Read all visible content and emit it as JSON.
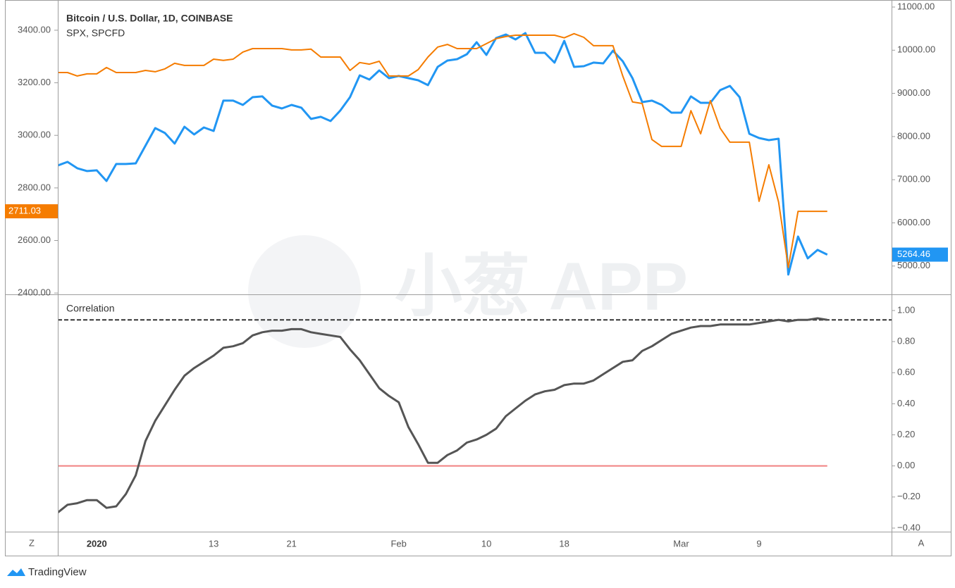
{
  "watermark": "小葱 APP",
  "brand": "TradingView",
  "buttons": [
    "Z",
    "A"
  ],
  "chart_data": [
    {
      "type": "line",
      "categories": [
        null,
        null,
        null,
        null,
        "2020",
        null,
        null,
        null,
        null,
        null,
        null,
        null,
        null,
        null,
        null,
        null,
        "13",
        null,
        null,
        null,
        null,
        null,
        null,
        null,
        "21",
        null,
        null,
        null,
        null,
        null,
        null,
        null,
        null,
        null,
        null,
        "Feb",
        null,
        null,
        null,
        null,
        null,
        null,
        null,
        null,
        "10",
        null,
        null,
        null,
        null,
        null,
        null,
        null,
        "18",
        null,
        null,
        null,
        null,
        null,
        null,
        null,
        null,
        null,
        null,
        null,
        "Mar",
        null,
        null,
        null,
        null,
        null,
        null,
        null,
        "9",
        null,
        null,
        null,
        null,
        null,
        null,
        null
      ],
      "series": [
        {
          "name": "Bitcoin / U.S. Dollar, 1D, COINBASE",
          "color": "#2196f3",
          "axis": "y2",
          "values": [
            7330,
            7412,
            7265,
            7200,
            7216,
            6971,
            7363,
            7363,
            7379,
            7787,
            8195,
            8081,
            7836,
            8227,
            8048,
            8211,
            8129,
            8831,
            8831,
            8733,
            8912,
            8929,
            8717,
            8651,
            8733,
            8668,
            8407,
            8456,
            8358,
            8602,
            8912,
            9418,
            9320,
            9532,
            9353,
            9402,
            9353,
            9304,
            9190,
            9614,
            9760,
            9793,
            9907,
            10184,
            9891,
            10282,
            10364,
            10250,
            10397,
            9940,
            9940,
            9712,
            10217,
            9614,
            9630,
            9712,
            9695,
            9989,
            9744,
            9353,
            8798,
            8831,
            8733,
            8553,
            8553,
            8929,
            8782,
            8782,
            9075,
            9173,
            8912,
            8064,
            7966,
            7917,
            7950,
            4802,
            5683,
            5177,
            5373,
            5264.46
          ]
        },
        {
          "name": "SPX, SPCFD",
          "color": "#f57c00",
          "values": [
            3239,
            3239,
            3226,
            3234,
            3234,
            3258,
            3239,
            3239,
            3239,
            3247,
            3242,
            3253,
            3274,
            3266,
            3266,
            3266,
            3290,
            3285,
            3290,
            3317,
            3330,
            3330,
            3330,
            3330,
            3325,
            3325,
            3328,
            3298,
            3298,
            3298,
            3247,
            3277,
            3271,
            3282,
            3226,
            3226,
            3226,
            3250,
            3298,
            3336,
            3346,
            3330,
            3330,
            3330,
            3349,
            3368,
            3376,
            3381,
            3381,
            3381,
            3381,
            3381,
            3371,
            3387,
            3373,
            3341,
            3341,
            3341,
            3226,
            3127,
            3121,
            2984,
            2958,
            2958,
            2958,
            3094,
            3006,
            3132,
            3027,
            2974,
            2974,
            2974,
            2749,
            2888,
            2746,
            2497,
            2711.03,
            2711.03,
            2711.03,
            2711.03
          ]
        }
      ],
      "ylim": [
        2395,
        3515
      ],
      "yticks": [
        {
          "value": 2400,
          "label": "2400.00"
        },
        {
          "value": 2600,
          "label": "2600.00"
        },
        {
          "value": 2800,
          "label": "2800.00"
        },
        {
          "value": 3000,
          "label": "3000.00"
        },
        {
          "value": 3200,
          "label": "3200.00"
        },
        {
          "value": 3400,
          "label": "3400.00"
        }
      ],
      "y2lim": [
        4344,
        11163
      ],
      "y2ticks": [
        {
          "value": 5000,
          "label": "5000.00"
        },
        {
          "value": 6000,
          "label": "6000.00"
        },
        {
          "value": 7000,
          "label": "7000.00"
        },
        {
          "value": 8000,
          "label": "8000.00"
        },
        {
          "value": 9000,
          "label": "9000.00"
        },
        {
          "value": 10000,
          "label": "10000.00"
        },
        {
          "value": 11000,
          "label": "11000.00"
        }
      ]
    },
    {
      "type": "line",
      "title": "Correlation",
      "series": [
        {
          "color": "#555555",
          "axis": "y2",
          "values": [
            -0.3,
            -0.25,
            -0.24,
            -0.22,
            -0.22,
            -0.27,
            -0.26,
            -0.18,
            -0.06,
            0.16,
            0.29,
            0.39,
            0.49,
            0.58,
            0.63,
            0.67,
            0.71,
            0.76,
            0.77,
            0.79,
            0.84,
            0.86,
            0.87,
            0.87,
            0.88,
            0.88,
            0.86,
            0.85,
            0.84,
            0.83,
            0.75,
            0.68,
            0.59,
            0.5,
            0.45,
            0.41,
            0.25,
            0.14,
            0.02,
            0.02,
            0.07,
            0.1,
            0.15,
            0.17,
            0.2,
            0.24,
            0.32,
            0.37,
            0.42,
            0.46,
            0.48,
            0.49,
            0.52,
            0.53,
            0.53,
            0.55,
            0.59,
            0.63,
            0.67,
            0.68,
            0.74,
            0.77,
            0.81,
            0.85,
            0.87,
            0.89,
            0.9,
            0.9,
            0.91,
            0.91,
            0.91,
            0.91,
            0.92,
            0.93,
            0.94,
            0.93,
            0.94,
            0.94,
            0.95,
            0.94
          ]
        }
      ],
      "y2lim": [
        -0.423,
        1.104
      ],
      "y2ticks": [
        {
          "value": -0.4,
          "label": "−0.40"
        },
        {
          "value": -0.2,
          "label": "−0.20"
        },
        {
          "value": 0,
          "label": "0.00"
        },
        {
          "value": 0.2,
          "label": "0.20"
        },
        {
          "value": 0.4,
          "label": "0.40"
        },
        {
          "value": 0.6,
          "label": "0.60"
        },
        {
          "value": 0.8,
          "label": "0.80"
        },
        {
          "value": 1,
          "label": "1.00"
        }
      ],
      "reference_lines": [
        {
          "value": 0.94,
          "color": "#333333",
          "dash": true
        },
        {
          "value": 0,
          "color": "#f08080"
        }
      ]
    }
  ]
}
